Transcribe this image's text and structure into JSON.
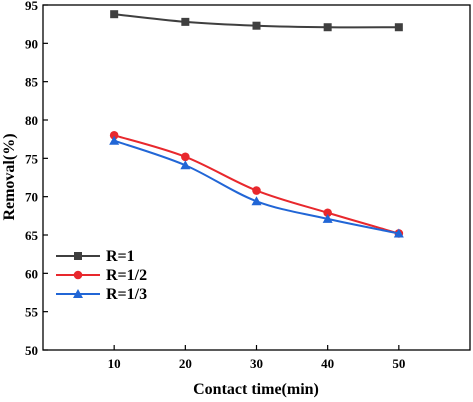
{
  "chart_data": {
    "type": "line",
    "xlabel": "Contact time(min)",
    "ylabel": "Removal(%)",
    "xlim": [
      0,
      60
    ],
    "ylim": [
      50,
      95
    ],
    "xticks": [
      10,
      20,
      30,
      40,
      50
    ],
    "yticks": [
      50,
      55,
      60,
      65,
      70,
      75,
      80,
      85,
      90,
      95
    ],
    "x": [
      10,
      20,
      30,
      40,
      50
    ],
    "grid": false,
    "legend_position": "lower-left",
    "series": [
      {
        "name": "R=1",
        "values": [
          93.8,
          92.8,
          92.3,
          92.1,
          92.1
        ],
        "color": "#3f3f3f",
        "marker": "square"
      },
      {
        "name": "R=1/2",
        "values": [
          78.0,
          75.2,
          70.8,
          67.9,
          65.2
        ],
        "color": "#e8282d",
        "marker": "circle"
      },
      {
        "name": "R=1/3",
        "values": [
          77.3,
          74.1,
          69.4,
          67.1,
          65.2
        ],
        "color": "#2166d6",
        "marker": "triangle"
      }
    ]
  }
}
